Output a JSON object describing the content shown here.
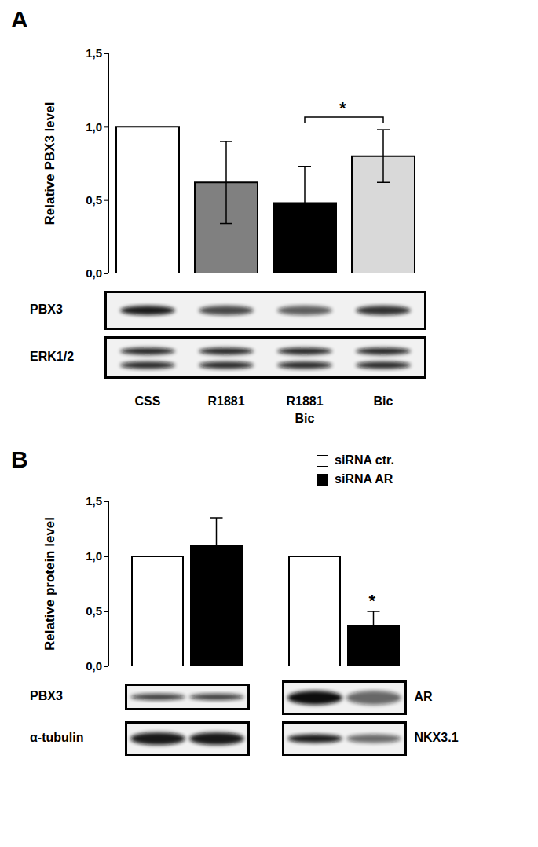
{
  "chart_data": [
    {
      "type": "bar",
      "panel": "A",
      "categories": [
        "CSS",
        "R1881",
        "R1881 Bic",
        "Bic"
      ],
      "values": [
        1.0,
        0.62,
        0.48,
        0.8
      ],
      "errors": [
        0,
        0.28,
        0.25,
        0.18
      ],
      "colors": [
        "#ffffff",
        "#808080",
        "#000000",
        "#d9d9d9"
      ],
      "y_label": "Relative PBX3 level",
      "ylim": [
        0,
        1.5
      ],
      "yticks": [
        {
          "value": 0,
          "label": "0,0"
        },
        {
          "value": 0.5,
          "label": "0,5"
        },
        {
          "value": 1,
          "label": "1,0"
        },
        {
          "value": 1.5,
          "label": "1,5"
        }
      ],
      "annotations": [
        {
          "text": "*",
          "between": [
            "R1881 Bic",
            "Bic"
          ]
        }
      ],
      "blots": [
        "PBX3",
        "ERK1/2"
      ]
    },
    {
      "type": "bar",
      "panel": "B",
      "categories": [
        null,
        null
      ],
      "series": [
        {
          "name": "siRNA ctr.",
          "color": "#ffffff",
          "values": [
            1.0,
            1.0
          ],
          "errors": [
            0,
            0
          ]
        },
        {
          "name": "siRNA AR",
          "color": "#000000",
          "values": [
            1.1,
            0.37
          ],
          "errors": [
            0.25,
            0.13
          ]
        }
      ],
      "y_label": "Relative protein level",
      "ylim": [
        0,
        1.5
      ],
      "yticks": [
        {
          "value": 0,
          "label": "0,0"
        },
        {
          "value": 0.5,
          "label": "0,5"
        },
        {
          "value": 1,
          "label": "1,0"
        },
        {
          "value": 1.5,
          "label": "1,5"
        }
      ],
      "legend": "upper right",
      "annotations": [
        {
          "text": "*",
          "series": "siRNA AR",
          "index": 1
        }
      ],
      "blots": [
        [
          "PBX3",
          "α-tubulin"
        ],
        [
          "AR",
          "NKX3.1"
        ]
      ]
    }
  ]
}
